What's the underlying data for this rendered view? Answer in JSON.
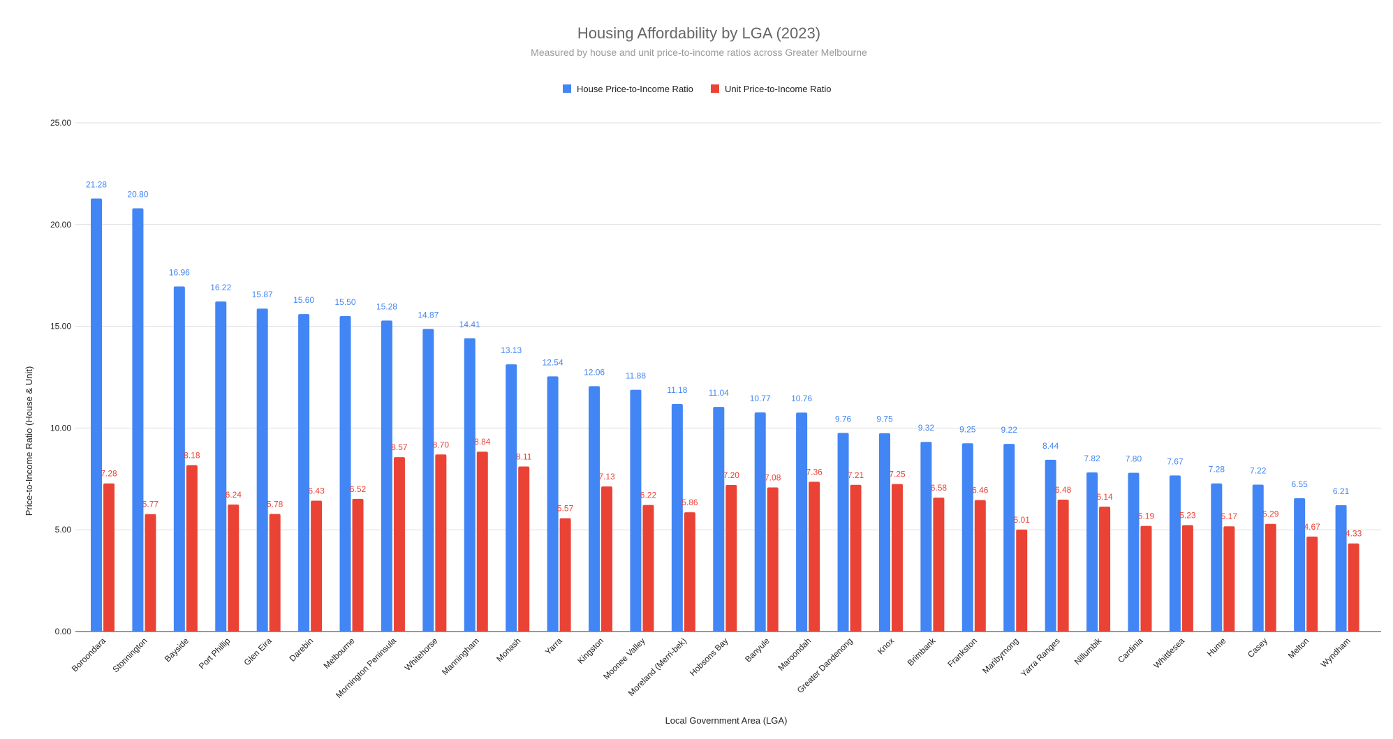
{
  "chart_data": {
    "type": "bar",
    "title": "Housing Affordability by LGA (2023)",
    "subtitle": "Measured by house and unit price-to-income ratios across Greater Melbourne",
    "xlabel": "Local Government Area (LGA)",
    "ylabel": "Price-to-Income Ratio (House & Unit)",
    "ylim": [
      0,
      25
    ],
    "yticks": [
      "0.00",
      "5.00",
      "10.00",
      "15.00",
      "20.00",
      "25.00"
    ],
    "grid": true,
    "legend_position": "top-center",
    "categories": [
      "Boroondara",
      "Stonnington",
      "Bayside",
      "Port Phillip",
      "Glen Eira",
      "Darebin",
      "Melbourne",
      "Mornington Peninsula",
      "Whitehorse",
      "Manningham",
      "Monash",
      "Yarra",
      "Kingston",
      "Moonee Valley",
      "Moreland (Merri-bek)",
      "Hobsons Bay",
      "Banyule",
      "Maroondah",
      "Greater Dandenong",
      "Knox",
      "Brimbank",
      "Frankston",
      "Maribyrnong",
      "Yarra Ranges",
      "Nillumbik",
      "Cardinia",
      "Whittlesea",
      "Hume",
      "Casey",
      "Melton",
      "Wyndham"
    ],
    "series": [
      {
        "name": "House Price-to-Income Ratio",
        "color": "#4285f4",
        "values": [
          21.28,
          20.8,
          16.96,
          16.22,
          15.87,
          15.6,
          15.5,
          15.28,
          14.87,
          14.41,
          13.13,
          12.54,
          12.06,
          11.88,
          11.18,
          11.04,
          10.77,
          10.76,
          9.76,
          9.75,
          9.32,
          9.25,
          9.22,
          8.44,
          7.82,
          7.8,
          7.67,
          7.28,
          7.22,
          6.55,
          6.21
        ]
      },
      {
        "name": "Unit Price-to-Income Ratio",
        "color": "#ea4335",
        "values": [
          7.28,
          5.77,
          8.18,
          6.24,
          5.78,
          6.43,
          6.52,
          8.57,
          8.7,
          8.84,
          8.11,
          5.57,
          7.13,
          6.22,
          5.86,
          7.2,
          7.08,
          7.36,
          7.21,
          7.25,
          6.58,
          6.46,
          5.01,
          6.48,
          6.14,
          5.19,
          5.23,
          5.17,
          5.29,
          4.67,
          4.33
        ]
      }
    ]
  }
}
